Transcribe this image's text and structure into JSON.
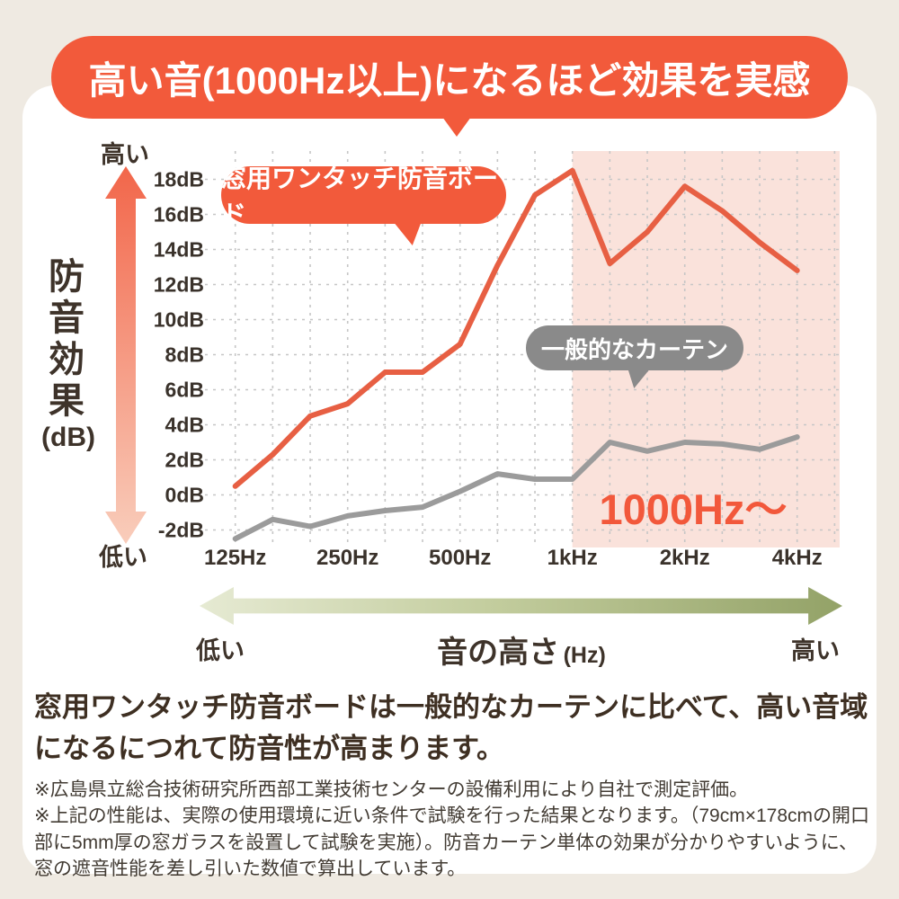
{
  "banner": {
    "title": "高い音(1000Hz以上)になるほど効果を実感"
  },
  "y_axis_block": {
    "top_label": "高い",
    "bottom_label": "低い",
    "title": "防音効果",
    "unit": "(dB)"
  },
  "labels": {
    "series_board": "窓用ワンタッチ防音ボード",
    "series_curtain": "一般的なカーテン",
    "highlight": "1000Hz〜"
  },
  "x_axis_block": {
    "left_label": "低い",
    "title": "音の高さ",
    "unit": "(Hz)",
    "right_label": "高い"
  },
  "lead_text": "窓用ワンタッチ防音ボードは一般的なカーテンに比べて、高い音域になるにつれて防音性が高まります。",
  "notes": [
    "※広島県立総合技術研究所西部工業技術センターの設備利用により自社で測定評価。",
    "※上記の性能は、実際の使用環境に近い条件で試験を行った結果となります。（79cm×178cmの開口部に5mm厚の窓ガラスを設置して試験を実施）。防音カーテン単体の効果が分かりやすいように、窓の遮音性能を差し引いた数値で算出しています。"
  ],
  "colors": {
    "accent_orange": "#F25A3B",
    "line_orange": "#E75F43",
    "line_gray": "#9B9B9B",
    "bubble_gray": "#8A8A8A",
    "highlight_pink": "#FAE2DB",
    "grid_dash": "#C6C6C6",
    "axis_text": "#3A322B",
    "page_bg": "#EFEAE2",
    "card_bg": "#FFFFFF"
  },
  "chart_data": {
    "type": "line",
    "x_axis": {
      "scale": "one-third-octave-log",
      "frequencies_hz": [
        125,
        160,
        200,
        250,
        315,
        400,
        500,
        630,
        800,
        1000,
        1250,
        1600,
        2000,
        2500,
        3150,
        4000
      ],
      "tick_labels": [
        {
          "label": "125Hz",
          "band": 0
        },
        {
          "label": "250Hz",
          "band": 3
        },
        {
          "label": "500Hz",
          "band": 6
        },
        {
          "label": "1kHz",
          "band": 9
        },
        {
          "label": "2kHz",
          "band": 12
        },
        {
          "label": "4kHz",
          "band": 15
        }
      ]
    },
    "y_axis": {
      "unit": "dB",
      "tick_values": [
        18,
        16,
        14,
        12,
        10,
        8,
        6,
        4,
        2,
        0,
        -2
      ],
      "tick_labels": [
        "18dB",
        "16dB",
        "14dB",
        "12dB",
        "10dB",
        "8dB",
        "6dB",
        "4dB",
        "2dB",
        "0dB",
        "-2dB"
      ]
    },
    "series": [
      {
        "name": "窓用ワンタッチ防音ボード",
        "color": "#E75F43",
        "values": [
          0.5,
          2.3,
          4.5,
          5.2,
          7.0,
          7.0,
          8.6,
          13.1,
          17.1,
          18.5,
          13.2,
          15.0,
          17.6,
          16.2,
          14.4,
          12.8
        ]
      },
      {
        "name": "一般的なカーテン",
        "color": "#9B9B9B",
        "values": [
          -2.5,
          -1.4,
          -1.8,
          -1.2,
          -0.9,
          -0.7,
          0.2,
          1.2,
          0.9,
          0.9,
          3.0,
          2.5,
          3.0,
          2.9,
          2.6,
          3.3
        ]
      }
    ],
    "highlight_region": {
      "label": "1000Hz〜",
      "start_band": 9,
      "color": "#FAE2DB"
    },
    "grid": "dashed"
  }
}
